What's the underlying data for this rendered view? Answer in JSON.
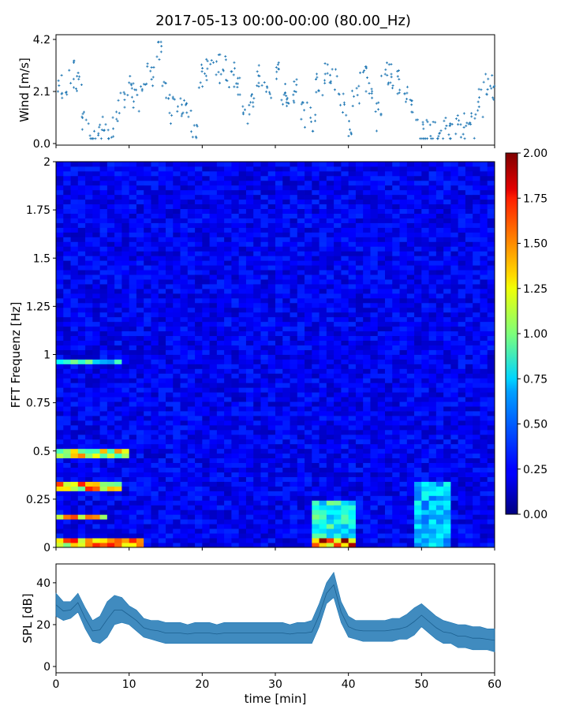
{
  "title": "2017-05-13 00:00-00:00 (80.00_Hz)",
  "chart_data": [
    {
      "type": "scatter",
      "panel": "wind",
      "ylabel": "Wind [m/s]",
      "xlim": [
        0,
        60
      ],
      "ylim": [
        0,
        4.2
      ],
      "yticks": [
        0.0,
        2.1,
        4.2
      ],
      "ytick_labels": [
        "0.0",
        "2.1",
        "4.2"
      ],
      "marker": "+",
      "color": "#1f77b4",
      "x": [
        0,
        1,
        2,
        3,
        4,
        5,
        6,
        7,
        8,
        9,
        10,
        11,
        12,
        13,
        14,
        15,
        16,
        17,
        18,
        19,
        20,
        21,
        22,
        23,
        24,
        25,
        26,
        27,
        28,
        29,
        30,
        31,
        32,
        33,
        34,
        35,
        36,
        37,
        38,
        39,
        40,
        41,
        42,
        43,
        44,
        45,
        46,
        47,
        48,
        49,
        50,
        51,
        52,
        53,
        54,
        55,
        56,
        57,
        58,
        59,
        60
      ],
      "y": [
        2.0,
        2.4,
        2.8,
        2.6,
        1.0,
        0.4,
        0.5,
        0.6,
        0.7,
        1.8,
        2.2,
        1.9,
        2.6,
        2.9,
        3.8,
        2.2,
        1.4,
        1.6,
        1.2,
        0.8,
        2.8,
        3.1,
        3.0,
        3.0,
        2.7,
        2.5,
        1.1,
        1.9,
        2.6,
        2.4,
        2.9,
        2.1,
        1.8,
        2.2,
        1.1,
        0.9,
        2.3,
        2.8,
        2.5,
        1.5,
        0.7,
        1.8,
        2.6,
        2.3,
        1.1,
        2.8,
        2.7,
        2.6,
        2.2,
        1.3,
        0.5,
        0.5,
        0.4,
        0.5,
        0.4,
        0.6,
        0.7,
        0.8,
        1.6,
        2.5,
        2.3
      ]
    },
    {
      "type": "heatmap",
      "panel": "spectrogram",
      "ylabel": "FFT Frequenz [Hz]",
      "xlim": [
        0,
        60
      ],
      "ylim": [
        0,
        2
      ],
      "yticks": [
        0,
        0.25,
        0.5,
        0.75,
        1,
        1.25,
        1.5,
        1.75,
        2
      ],
      "ytick_labels": [
        "0",
        "0.25",
        "0.5",
        "0.75",
        "1",
        "1.25",
        "1.5",
        "1.75",
        "2"
      ],
      "colormap": "jet",
      "clim": [
        0,
        2
      ],
      "colorbar_ticks": [
        0,
        0.25,
        0.5,
        0.75,
        1.0,
        1.25,
        1.5,
        1.75,
        2.0
      ],
      "colorbar_tick_labels": [
        "0.00",
        "0.25",
        "0.50",
        "0.75",
        "1.00",
        "1.25",
        "1.50",
        "1.75",
        "2.00"
      ],
      "background_level": 0.25,
      "hotspots": [
        {
          "t": [
            0,
            12
          ],
          "f": [
            0.0,
            0.05
          ],
          "value": 1.8
        },
        {
          "t": [
            0,
            10
          ],
          "f": [
            0.46,
            0.5
          ],
          "value": 1.5
        },
        {
          "t": [
            0,
            9
          ],
          "f": [
            0.3,
            0.33
          ],
          "value": 1.7
        },
        {
          "t": [
            0,
            7
          ],
          "f": [
            0.14,
            0.17
          ],
          "value": 1.7
        },
        {
          "t": [
            0,
            9
          ],
          "f": [
            0.95,
            0.98
          ],
          "value": 1.0
        },
        {
          "t": [
            35,
            41
          ],
          "f": [
            0.0,
            0.25
          ],
          "value": 1.0
        },
        {
          "t": [
            35,
            41
          ],
          "f": [
            0.0,
            0.04
          ],
          "value": 2.0
        },
        {
          "t": [
            49,
            54
          ],
          "f": [
            0.0,
            0.35
          ],
          "value": 0.8
        }
      ]
    },
    {
      "type": "area",
      "panel": "spl",
      "ylabel": "SPL [dB]",
      "xlabel": "time [min]",
      "xlim": [
        0,
        60
      ],
      "ylim": [
        -3,
        49
      ],
      "xticks": [
        0,
        10,
        20,
        30,
        40,
        50,
        60
      ],
      "xtick_labels": [
        "0",
        "10",
        "20",
        "30",
        "40",
        "50",
        "60"
      ],
      "yticks": [
        0,
        20,
        40
      ],
      "ytick_labels": [
        "0",
        "20",
        "40"
      ],
      "color": "#1f77b4",
      "x": [
        0,
        1,
        2,
        3,
        4,
        5,
        6,
        7,
        8,
        9,
        10,
        11,
        12,
        13,
        14,
        15,
        16,
        17,
        18,
        19,
        20,
        21,
        22,
        23,
        24,
        25,
        26,
        27,
        28,
        29,
        30,
        31,
        32,
        33,
        34,
        35,
        36,
        37,
        38,
        39,
        40,
        41,
        42,
        43,
        44,
        45,
        46,
        47,
        48,
        49,
        50,
        51,
        52,
        53,
        54,
        55,
        56,
        57,
        58,
        59,
        60
      ],
      "upper": [
        35,
        31,
        31,
        35,
        28,
        22,
        24,
        31,
        34,
        33,
        29,
        27,
        23,
        22,
        22,
        21,
        21,
        21,
        20,
        21,
        21,
        21,
        20,
        21,
        21,
        21,
        21,
        21,
        21,
        21,
        21,
        21,
        20,
        21,
        21,
        22,
        30,
        40,
        45,
        31,
        24,
        22,
        22,
        22,
        22,
        22,
        23,
        23,
        25,
        28,
        30,
        27,
        24,
        22,
        21,
        20,
        20,
        19,
        19,
        18,
        18
      ],
      "lower": [
        24,
        22,
        23,
        26,
        18,
        12,
        11,
        14,
        20,
        21,
        20,
        17,
        14,
        13,
        12,
        11,
        11,
        11,
        11,
        11,
        11,
        11,
        11,
        11,
        11,
        11,
        11,
        11,
        11,
        11,
        11,
        11,
        11,
        11,
        11,
        11,
        19,
        30,
        33,
        21,
        14,
        13,
        12,
        12,
        12,
        12,
        12,
        13,
        13,
        15,
        19,
        16,
        13,
        11,
        11,
        9,
        9,
        8,
        8,
        8,
        7
      ]
    }
  ]
}
